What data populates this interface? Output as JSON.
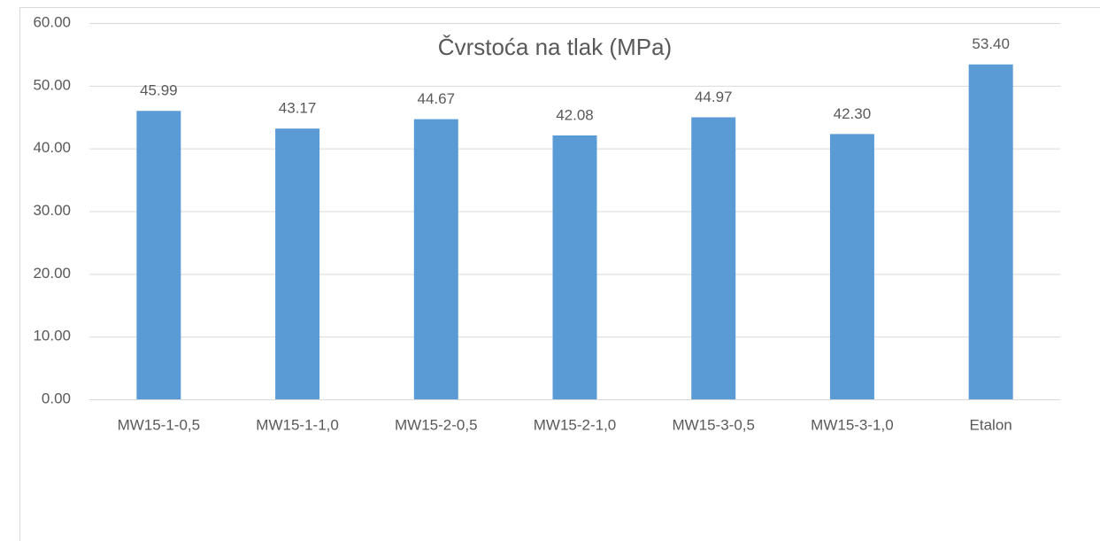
{
  "chart_data": {
    "type": "bar",
    "title": "Čvrstoća na tlak (MPa)",
    "categories": [
      "MW15-1-0,5",
      "MW15-1-1,0",
      "MW15-2-0,5",
      "MW15-2-1,0",
      "MW15-3-0,5",
      "MW15-3-1,0",
      "Etalon"
    ],
    "values": [
      45.99,
      43.17,
      44.67,
      42.08,
      44.97,
      42.3,
      53.4
    ],
    "value_labels": [
      "45.99",
      "43.17",
      "44.67",
      "42.08",
      "44.97",
      "42.30",
      "53.40"
    ],
    "color": "#5b9bd5",
    "ylim": [
      0,
      60
    ],
    "yticks": [
      {
        "value": 0,
        "label": "0.00"
      },
      {
        "value": 10,
        "label": "10.00"
      },
      {
        "value": 20,
        "label": "20.00"
      },
      {
        "value": 30,
        "label": "30.00"
      },
      {
        "value": 40,
        "label": "40.00"
      },
      {
        "value": 50,
        "label": "50.00"
      },
      {
        "value": 60,
        "label": "60.00"
      }
    ],
    "grid": true
  }
}
